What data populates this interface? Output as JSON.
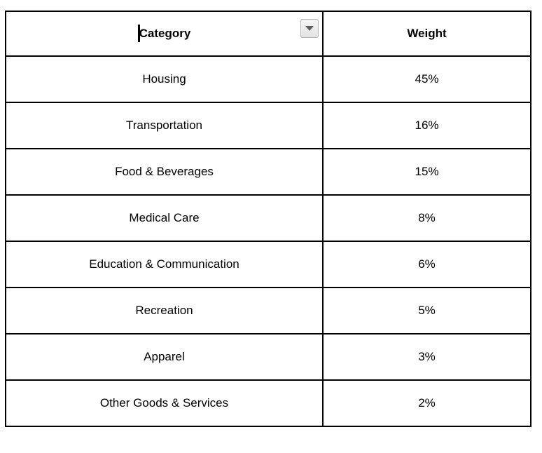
{
  "table": {
    "columns": [
      {
        "label": "Category"
      },
      {
        "label": "Weight"
      }
    ],
    "rows": [
      {
        "category": "Housing",
        "weight": "45%"
      },
      {
        "category": "Transportation",
        "weight": "16%"
      },
      {
        "category": "Food & Beverages",
        "weight": "15%"
      },
      {
        "category": "Medical Care",
        "weight": "8%"
      },
      {
        "category": "Education & Communication",
        "weight": "6%"
      },
      {
        "category": "Recreation",
        "weight": "5%"
      },
      {
        "category": "Apparel",
        "weight": "3%"
      },
      {
        "category": "Other Goods & Services",
        "weight": "2%"
      }
    ],
    "icons": {
      "header_dropdown": "dropdown-arrow-icon"
    },
    "editing": {
      "caret_visible_in": "Category header cell"
    }
  },
  "colors": {
    "border": "#000000",
    "cell_background": "#ffffff",
    "text": "#000000",
    "dropdown_button_background": "#ececec",
    "dropdown_button_border": "#b5b5b5",
    "dropdown_arrow": "#5e5e5e"
  }
}
